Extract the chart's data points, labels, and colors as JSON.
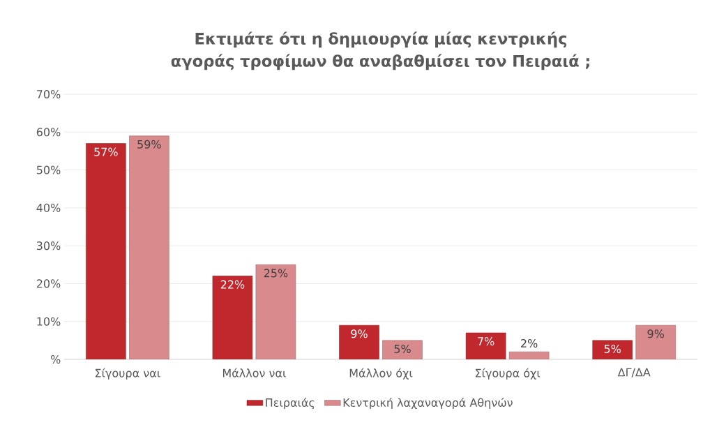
{
  "chart_data": {
    "type": "bar",
    "title": "Εκτιμάτε ότι η δημιουργία μίας κεντρικής αγοράς τροφίμων θα αναβαθμίσει τον Πειραιά ;",
    "categories": [
      "Σίγουρα ναι",
      "Μάλλον ναι",
      "Μάλλον όχι",
      "Σίγουρα όχι",
      "ΔΓ/ΔΑ"
    ],
    "series": [
      {
        "name": "Πειραιάς",
        "color": "#c0282d",
        "values": [
          57,
          22,
          9,
          7,
          5
        ],
        "value_labels": [
          "57%",
          "22%",
          "9%",
          "7%",
          "5%"
        ]
      },
      {
        "name": "Κεντρική λαχαναγορά Αθηνών",
        "color": "#d98a8c",
        "values": [
          59,
          25,
          5,
          2,
          9
        ],
        "value_labels": [
          "59%",
          "25%",
          "5%",
          "2%",
          "9%"
        ]
      }
    ],
    "ylim": [
      0,
      70
    ],
    "yticks": [
      {
        "value": 0,
        "label": "%"
      },
      {
        "value": 10,
        "label": "10%"
      },
      {
        "value": 20,
        "label": "20%"
      },
      {
        "value": 30,
        "label": "30%"
      },
      {
        "value": 40,
        "label": "40%"
      },
      {
        "value": 50,
        "label": "50%"
      },
      {
        "value": 60,
        "label": "60%"
      },
      {
        "value": 70,
        "label": "70%"
      }
    ],
    "grid": "y",
    "legend": "bottom"
  }
}
